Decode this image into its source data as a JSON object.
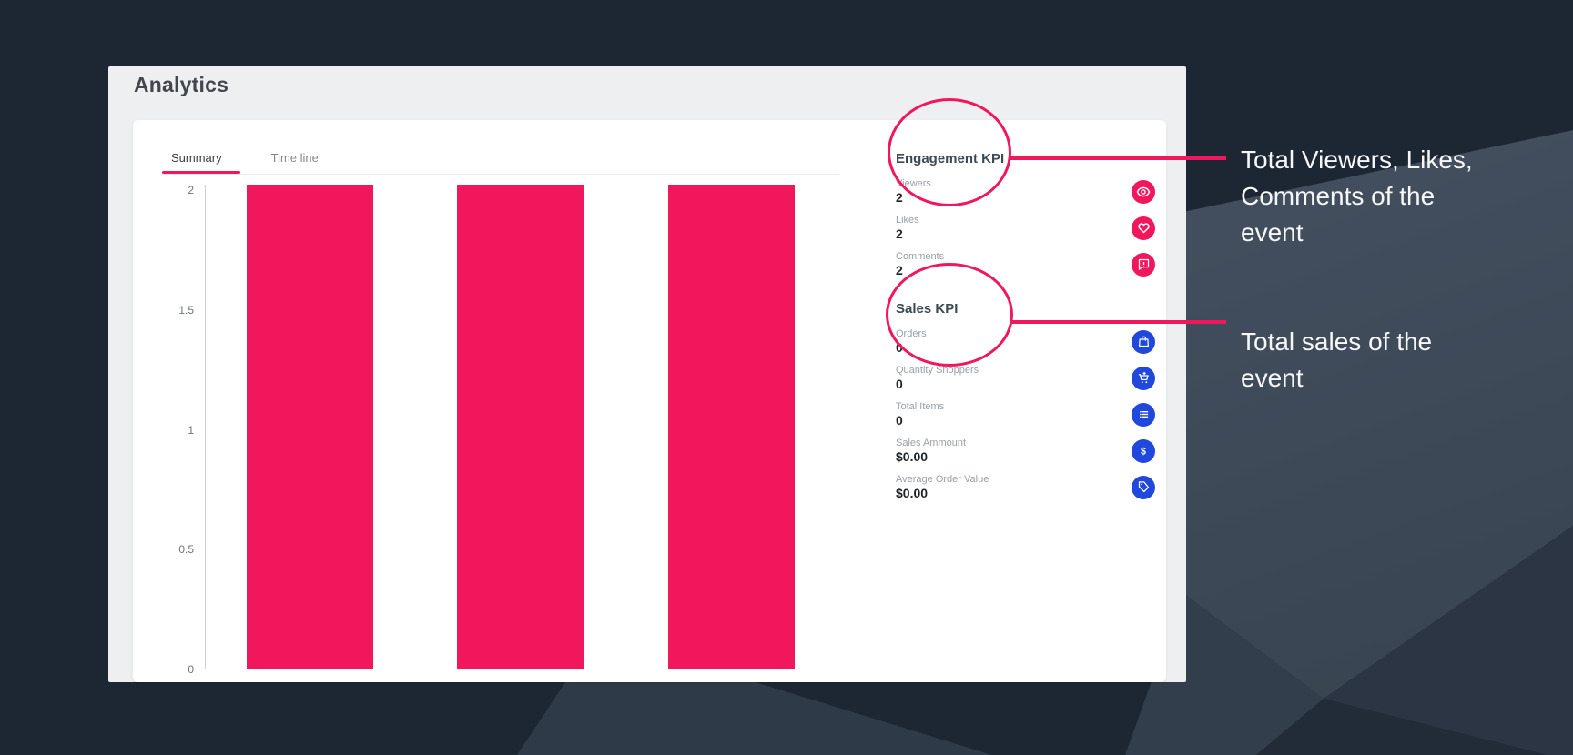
{
  "page": {
    "title": "Analytics"
  },
  "tabs": [
    {
      "label": "Summary",
      "active": true
    },
    {
      "label": "Time line",
      "active": false
    }
  ],
  "chart_data": {
    "type": "bar",
    "categories": [
      "",
      "",
      ""
    ],
    "values": [
      2,
      2,
      2
    ],
    "title": "",
    "xlabel": "",
    "ylabel": "",
    "ylim": [
      0,
      2
    ],
    "yticks": [
      "2",
      "1.5",
      "1",
      "0.5",
      "0"
    ],
    "grid": false,
    "legend": false,
    "bar_color": "#f0175c"
  },
  "kpi_sections": [
    {
      "title": "Engagement KPI",
      "items": [
        {
          "label": "Viewers",
          "value": "2",
          "icon": "eye-icon"
        },
        {
          "label": "Likes",
          "value": "2",
          "icon": "heart-icon"
        },
        {
          "label": "Comments",
          "value": "2",
          "icon": "comment-icon"
        }
      ]
    },
    {
      "title": "Sales KPI",
      "items": [
        {
          "label": "Orders",
          "value": "0",
          "icon": "shopping-bag-icon"
        },
        {
          "label": "Quantity Shoppers",
          "value": "0",
          "icon": "add-cart-icon"
        },
        {
          "label": "Total Items",
          "value": "0",
          "icon": "list-icon"
        },
        {
          "label": "Sales Ammount",
          "value": "$0.00",
          "icon": "dollar-icon"
        },
        {
          "label": "Average Order Value",
          "value": "$0.00",
          "icon": "price-tag-icon"
        }
      ]
    }
  ],
  "annotations": [
    {
      "lines": [
        "Total Viewers, Likes,",
        "Comments  of the",
        "event"
      ]
    },
    {
      "lines": [
        "Total sales of the",
        "event"
      ]
    }
  ],
  "colors": {
    "accent_pink": "#f0175c",
    "accent_blue": "#2148dc",
    "background_navy": "#1d2633",
    "background_facet": "#46525f",
    "panel_gray": "#edeff1",
    "card_white": "#ffffff"
  }
}
